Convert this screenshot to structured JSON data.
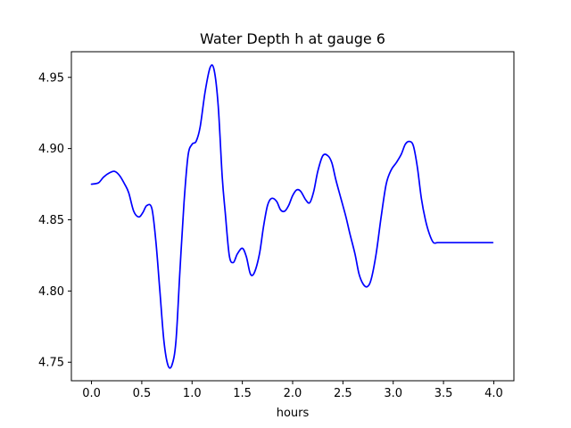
{
  "chart_data": {
    "type": "line",
    "title": "Water Depth h at gauge 6",
    "xlabel": "hours",
    "ylabel": "",
    "xlim": [
      -0.2,
      4.2
    ],
    "ylim": [
      4.737,
      4.968
    ],
    "xticks": [
      0.0,
      0.5,
      1.0,
      1.5,
      2.0,
      2.5,
      3.0,
      3.5,
      4.0
    ],
    "xtick_labels": [
      "0.0",
      "0.5",
      "1.0",
      "1.5",
      "2.0",
      "2.5",
      "3.0",
      "3.5",
      "4.0"
    ],
    "yticks": [
      4.75,
      4.8,
      4.85,
      4.9,
      4.95
    ],
    "ytick_labels": [
      "4.75",
      "4.80",
      "4.85",
      "4.90",
      "4.95"
    ],
    "grid": false,
    "series": [
      {
        "color": "#0000ff",
        "x": [
          0.0,
          0.07,
          0.12,
          0.18,
          0.23,
          0.28,
          0.33,
          0.37,
          0.42,
          0.47,
          0.51,
          0.55,
          0.6,
          0.64,
          0.68,
          0.72,
          0.76,
          0.8,
          0.84,
          0.88,
          0.92,
          0.96,
          1.0,
          1.04,
          1.08,
          1.13,
          1.18,
          1.22,
          1.26,
          1.3,
          1.33,
          1.37,
          1.41,
          1.45,
          1.5,
          1.54,
          1.58,
          1.62,
          1.67,
          1.71,
          1.75,
          1.79,
          1.84,
          1.88,
          1.92,
          1.96,
          2.0,
          2.04,
          2.08,
          2.13,
          2.17,
          2.21,
          2.25,
          2.3,
          2.35,
          2.39,
          2.43,
          2.48,
          2.53,
          2.57,
          2.62,
          2.66,
          2.7,
          2.74,
          2.78,
          2.83,
          2.88,
          2.93,
          2.98,
          3.03,
          3.08,
          3.12,
          3.16,
          3.2,
          3.24,
          3.28,
          3.32,
          3.36,
          3.4,
          3.44,
          3.49,
          3.54,
          3.58,
          3.62,
          3.66,
          3.7,
          3.74,
          3.78,
          3.82,
          3.86,
          3.9,
          3.94,
          3.99
        ],
        "y": [
          4.875,
          4.876,
          4.88,
          4.883,
          4.884,
          4.881,
          4.875,
          4.869,
          4.856,
          4.852,
          4.855,
          4.86,
          4.858,
          4.835,
          4.8,
          4.765,
          4.748,
          4.748,
          4.765,
          4.815,
          4.862,
          4.895,
          4.903,
          4.905,
          4.915,
          4.94,
          4.957,
          4.955,
          4.93,
          4.88,
          4.855,
          4.825,
          4.82,
          4.826,
          4.83,
          4.824,
          4.812,
          4.813,
          4.826,
          4.845,
          4.86,
          4.865,
          4.863,
          4.857,
          4.856,
          4.86,
          4.867,
          4.871,
          4.87,
          4.864,
          4.862,
          4.87,
          4.884,
          4.895,
          4.895,
          4.89,
          4.878,
          4.865,
          4.852,
          4.84,
          4.826,
          4.812,
          4.805,
          4.803,
          4.808,
          4.826,
          4.852,
          4.875,
          4.885,
          4.89,
          4.896,
          4.903,
          4.905,
          4.902,
          4.887,
          4.865,
          4.85,
          4.84,
          4.834,
          4.834,
          4.834,
          4.834,
          4.834,
          4.834,
          4.834,
          4.834,
          4.834,
          4.834,
          4.834,
          4.834,
          4.834,
          4.834,
          4.834
        ]
      }
    ]
  }
}
